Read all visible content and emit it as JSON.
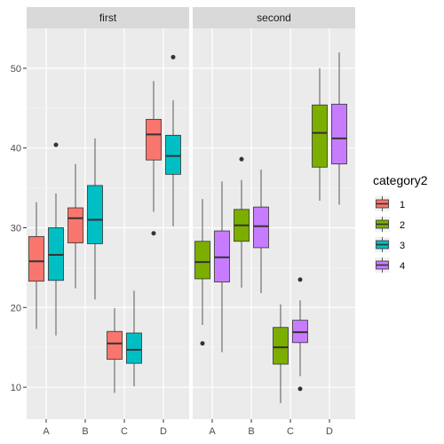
{
  "chart_data": {
    "type": "boxplot",
    "facets": [
      "first",
      "second"
    ],
    "categories": [
      "A",
      "B",
      "C",
      "D"
    ],
    "ylim": [
      6,
      55
    ],
    "yticks": [
      10,
      20,
      30,
      40,
      50
    ],
    "grid": true,
    "legend": {
      "title": "category2",
      "position": "right",
      "entries": [
        {
          "label": "1",
          "color": "#F8766D"
        },
        {
          "label": "2",
          "color": "#7CAE00"
        },
        {
          "label": "3",
          "color": "#00BFC4"
        },
        {
          "label": "4",
          "color": "#C77CFF"
        }
      ]
    },
    "boxes": [
      {
        "facet": 0,
        "category": "A",
        "group": "1",
        "min": 17.3,
        "q1": 23.3,
        "median": 25.8,
        "q3": 28.9,
        "max": 33.2,
        "outliers": []
      },
      {
        "facet": 0,
        "category": "A",
        "group": "3",
        "min": 16.5,
        "q1": 23.4,
        "median": 26.6,
        "q3": 30.0,
        "max": 34.3,
        "outliers": [
          40.4
        ]
      },
      {
        "facet": 0,
        "category": "B",
        "group": "1",
        "min": 22.4,
        "q1": 28.1,
        "median": 31.2,
        "q3": 32.5,
        "max": 38.0,
        "outliers": []
      },
      {
        "facet": 0,
        "category": "B",
        "group": "3",
        "min": 21.0,
        "q1": 28.0,
        "median": 31.0,
        "q3": 35.3,
        "max": 41.2,
        "outliers": []
      },
      {
        "facet": 0,
        "category": "C",
        "group": "1",
        "min": 9.3,
        "q1": 13.5,
        "median": 15.5,
        "q3": 17.0,
        "max": 19.9,
        "outliers": []
      },
      {
        "facet": 0,
        "category": "C",
        "group": "3",
        "min": 10.1,
        "q1": 13.0,
        "median": 14.7,
        "q3": 16.8,
        "max": 22.1,
        "outliers": []
      },
      {
        "facet": 0,
        "category": "D",
        "group": "1",
        "min": 32.0,
        "q1": 38.5,
        "median": 41.7,
        "q3": 43.6,
        "max": 48.4,
        "outliers": [
          29.3
        ]
      },
      {
        "facet": 0,
        "category": "D",
        "group": "3",
        "min": 30.2,
        "q1": 36.7,
        "median": 39.0,
        "q3": 41.6,
        "max": 46.0,
        "outliers": [
          51.4
        ]
      },
      {
        "facet": 1,
        "category": "A",
        "group": "2",
        "min": 17.8,
        "q1": 23.6,
        "median": 25.7,
        "q3": 28.3,
        "max": 33.6,
        "outliers": [
          15.5
        ]
      },
      {
        "facet": 1,
        "category": "A",
        "group": "4",
        "min": 14.4,
        "q1": 23.2,
        "median": 26.3,
        "q3": 29.6,
        "max": 35.8,
        "outliers": []
      },
      {
        "facet": 1,
        "category": "B",
        "group": "2",
        "min": 22.5,
        "q1": 28.3,
        "median": 30.3,
        "q3": 32.3,
        "max": 36.0,
        "outliers": [
          38.6
        ]
      },
      {
        "facet": 1,
        "category": "B",
        "group": "4",
        "min": 21.8,
        "q1": 27.5,
        "median": 30.2,
        "q3": 32.6,
        "max": 37.3,
        "outliers": []
      },
      {
        "facet": 1,
        "category": "C",
        "group": "2",
        "min": 8.0,
        "q1": 12.9,
        "median": 15.0,
        "q3": 17.5,
        "max": 20.4,
        "outliers": []
      },
      {
        "facet": 1,
        "category": "C",
        "group": "4",
        "min": 11.4,
        "q1": 15.6,
        "median": 16.9,
        "q3": 18.4,
        "max": 20.9,
        "outliers": [
          23.5,
          9.8
        ]
      },
      {
        "facet": 1,
        "category": "D",
        "group": "2",
        "min": 33.4,
        "q1": 37.6,
        "median": 41.9,
        "q3": 45.4,
        "max": 50.0,
        "outliers": []
      },
      {
        "facet": 1,
        "category": "D",
        "group": "4",
        "min": 32.9,
        "q1": 38.0,
        "median": 41.2,
        "q3": 45.5,
        "max": 52.0,
        "outliers": []
      }
    ]
  }
}
